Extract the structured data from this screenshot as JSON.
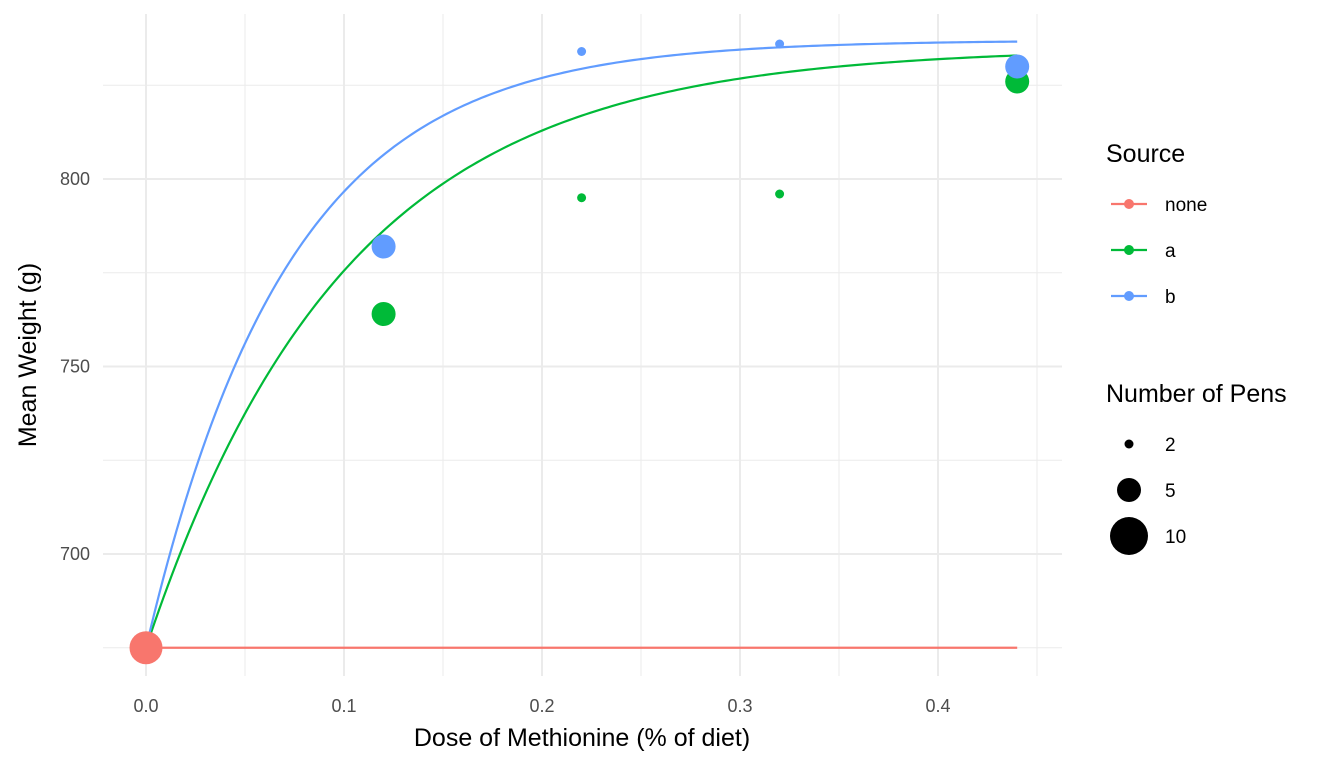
{
  "chart_data": {
    "type": "scatter",
    "title": "",
    "xlabel": "Dose of Methionine (% of diet)",
    "ylabel": "Mean Weight (g)",
    "xlim": [
      -0.022,
      0.462
    ],
    "ylim": [
      665,
      705
    ],
    "ylim_note": "",
    "x_ticks": [
      0.0,
      0.1,
      0.2,
      0.3,
      0.4
    ],
    "x_tick_labels": [
      "0.0",
      "0.1",
      "0.2",
      "0.3",
      "0.4"
    ],
    "y_ticks": [
      700,
      750,
      800
    ],
    "y_tick_labels": [
      "700",
      "750",
      "800"
    ],
    "grid": true,
    "legend_position": "right",
    "legends": {
      "color": {
        "title": "Source",
        "entries": [
          {
            "label": "none",
            "color": "#F8766D"
          },
          {
            "label": "a",
            "color": "#00BA38"
          },
          {
            "label": "b",
            "color": "#619CFF"
          }
        ]
      },
      "size": {
        "title": "Number of Pens",
        "entries": [
          {
            "label": "2",
            "value": 2
          },
          {
            "label": "5",
            "value": 5
          },
          {
            "label": "10",
            "value": 10
          }
        ]
      }
    },
    "series": [
      {
        "name": "none",
        "color": "#F8766D",
        "points": [
          {
            "x": 0.0,
            "y": 675,
            "n": 10
          }
        ],
        "curve": {
          "y0": 675,
          "asymptote": 675,
          "rate": 0
        }
      },
      {
        "name": "a",
        "color": "#00BA38",
        "points": [
          {
            "x": 0.12,
            "y": 764,
            "n": 5
          },
          {
            "x": 0.22,
            "y": 795,
            "n": 2
          },
          {
            "x": 0.32,
            "y": 796,
            "n": 2
          },
          {
            "x": 0.44,
            "y": 826,
            "n": 5
          }
        ],
        "curve": {
          "y0": 675,
          "asymptote": 835,
          "rate": 9.9
        }
      },
      {
        "name": "b",
        "color": "#619CFF",
        "points": [
          {
            "x": 0.12,
            "y": 782,
            "n": 5
          },
          {
            "x": 0.22,
            "y": 834,
            "n": 2
          },
          {
            "x": 0.32,
            "y": 836,
            "n": 2
          },
          {
            "x": 0.44,
            "y": 830,
            "n": 5
          }
        ],
        "curve": {
          "y0": 675,
          "asymptote": 837,
          "rate": 13.9
        }
      }
    ]
  }
}
